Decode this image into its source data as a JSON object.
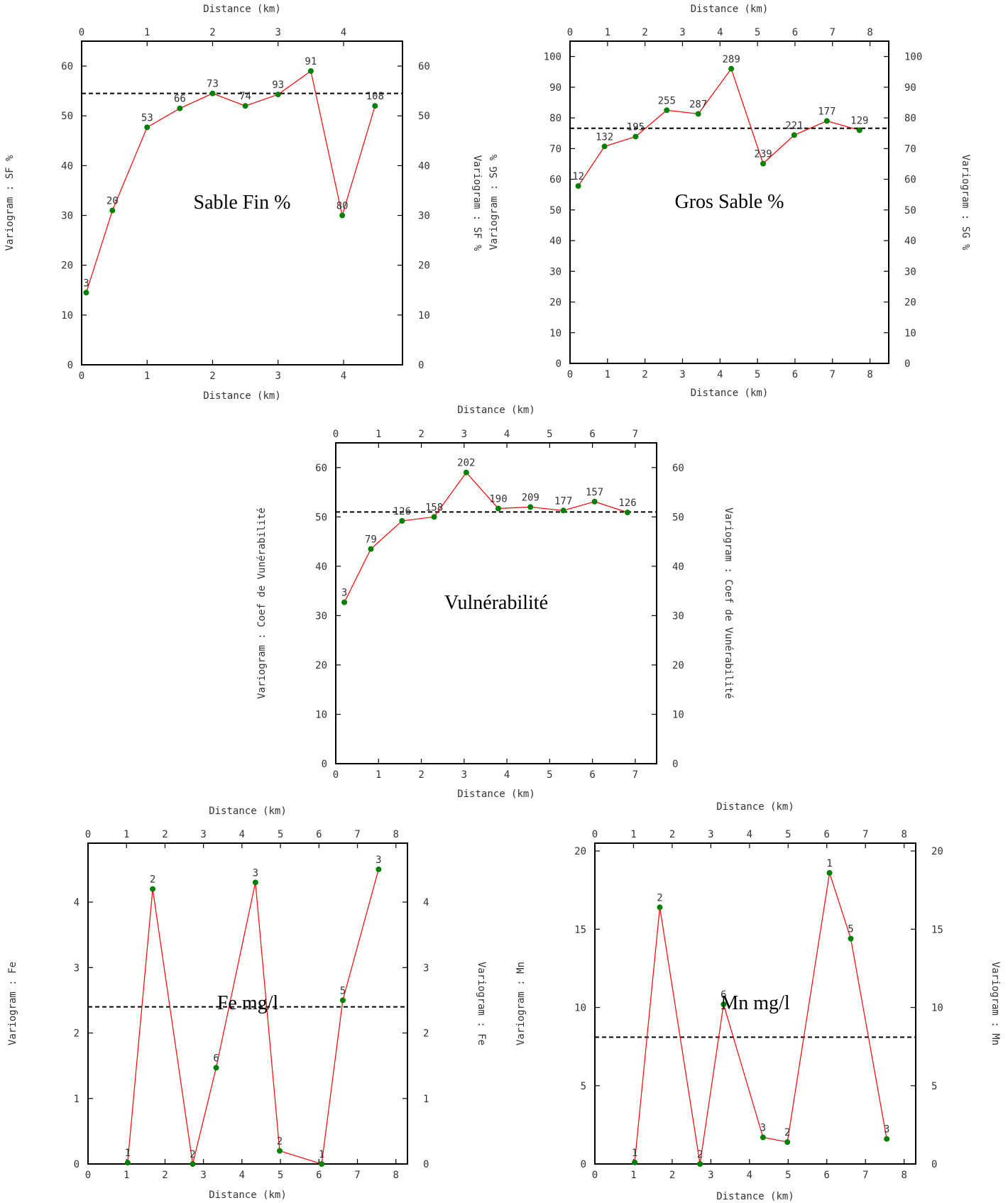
{
  "colors": {
    "line": "#ff0000",
    "marker": "#008000",
    "sill": "#000000",
    "frame": "#000000",
    "text": "#333333"
  },
  "chart_data": [
    {
      "type": "line",
      "title": "Sable Fin %",
      "xlabel": "Distance (km)",
      "ylabel": "Variogram : SF %",
      "xlim": [
        0,
        4.9
      ],
      "ylim": [
        0,
        65
      ],
      "xticks": [
        0,
        1,
        2,
        3,
        4
      ],
      "yticks": [
        0,
        10,
        20,
        30,
        40,
        50,
        60
      ],
      "sill": 54.5,
      "grid": false,
      "series": [
        {
          "x": [
            0.07,
            0.47,
            1.0,
            1.5,
            2.0,
            2.5,
            3.0,
            3.5,
            3.98,
            4.48
          ],
          "y": [
            14.5,
            31.0,
            47.7,
            51.5,
            54.5,
            52.0,
            54.3,
            59.0,
            30.0,
            52.0
          ],
          "labels": [
            "3",
            "20",
            "53",
            "66",
            "73",
            "74",
            "93",
            "91",
            "80",
            "108"
          ]
        }
      ]
    },
    {
      "type": "line",
      "title": "Gros Sable %",
      "xlabel": "Distance (km)",
      "ylabel": "Variogram : SG %",
      "xlim": [
        0,
        8.5
      ],
      "ylim": [
        0,
        105
      ],
      "xticks": [
        0,
        1,
        2,
        3,
        4,
        5,
        6,
        7,
        8
      ],
      "yticks": [
        0,
        10,
        20,
        30,
        40,
        50,
        60,
        70,
        80,
        90,
        100
      ],
      "sill": 76.6,
      "grid": false,
      "series": [
        {
          "x": [
            0.22,
            0.92,
            1.75,
            2.58,
            3.42,
            4.3,
            5.15,
            5.98,
            6.85,
            7.72
          ],
          "y": [
            57.8,
            70.7,
            73.9,
            82.5,
            81.3,
            96.0,
            65.1,
            74.4,
            79.0,
            76.0
          ],
          "labels": [
            "12",
            "132",
            "195",
            "255",
            "287",
            "289",
            "239",
            "221",
            "177",
            "129"
          ]
        }
      ]
    },
    {
      "type": "line",
      "title": "Vulnérabilité",
      "xlabel": "Distance (km)",
      "ylabel": "Variogram : Coef de Vunérabilité",
      "xlim": [
        0,
        7.5
      ],
      "ylim": [
        0,
        65
      ],
      "xticks": [
        0,
        1,
        2,
        3,
        4,
        5,
        6,
        7
      ],
      "yticks": [
        0,
        10,
        20,
        30,
        40,
        50,
        60
      ],
      "sill": 51.0,
      "grid": false,
      "series": [
        {
          "x": [
            0.2,
            0.82,
            1.55,
            2.3,
            3.05,
            3.8,
            4.55,
            5.32,
            6.05,
            6.82
          ],
          "y": [
            32.7,
            43.5,
            49.2,
            50.0,
            59.0,
            51.7,
            52.0,
            51.3,
            53.1,
            50.9
          ],
          "labels": [
            "3",
            "79",
            "126",
            "158",
            "202",
            "190",
            "209",
            "177",
            "157",
            "126"
          ]
        }
      ]
    },
    {
      "type": "line",
      "title": "Fe mg/l",
      "xlabel": "Distance (km)",
      "ylabel": "Variogram : Fe",
      "xlim": [
        0,
        8.3
      ],
      "ylim": [
        0,
        4.9
      ],
      "xticks": [
        0,
        1,
        2,
        3,
        4,
        5,
        6,
        7,
        8
      ],
      "yticks": [
        0,
        1,
        2,
        3,
        4
      ],
      "sill": 2.4,
      "grid": false,
      "series": [
        {
          "x": [
            1.03,
            1.68,
            2.72,
            3.33,
            4.35,
            4.98,
            6.07,
            6.62,
            7.55
          ],
          "y": [
            0.02,
            4.2,
            0.0,
            1.47,
            4.3,
            0.2,
            0.0,
            2.5,
            4.5
          ],
          "labels": [
            "1",
            "2",
            "2",
            "6",
            "3",
            "2",
            "1",
            "5",
            "3"
          ]
        }
      ]
    },
    {
      "type": "line",
      "title": "Mn mg/l",
      "xlabel": "Distance (km)",
      "ylabel": "Variogram : Mn",
      "xlim": [
        0,
        8.3
      ],
      "ylim": [
        0,
        20.5
      ],
      "xticks": [
        0,
        1,
        2,
        3,
        4,
        5,
        6,
        7,
        8
      ],
      "yticks": [
        0,
        5,
        10,
        15,
        20
      ],
      "sill": 8.1,
      "grid": false,
      "series": [
        {
          "x": [
            1.03,
            1.68,
            2.72,
            3.33,
            4.35,
            4.98,
            6.07,
            6.62,
            7.55
          ],
          "y": [
            0.1,
            16.4,
            0.0,
            10.2,
            1.7,
            1.4,
            18.6,
            14.4,
            1.6
          ],
          "labels": [
            "1",
            "2",
            "2",
            "6",
            "3",
            "2",
            "1",
            "5",
            "3"
          ]
        }
      ]
    }
  ]
}
